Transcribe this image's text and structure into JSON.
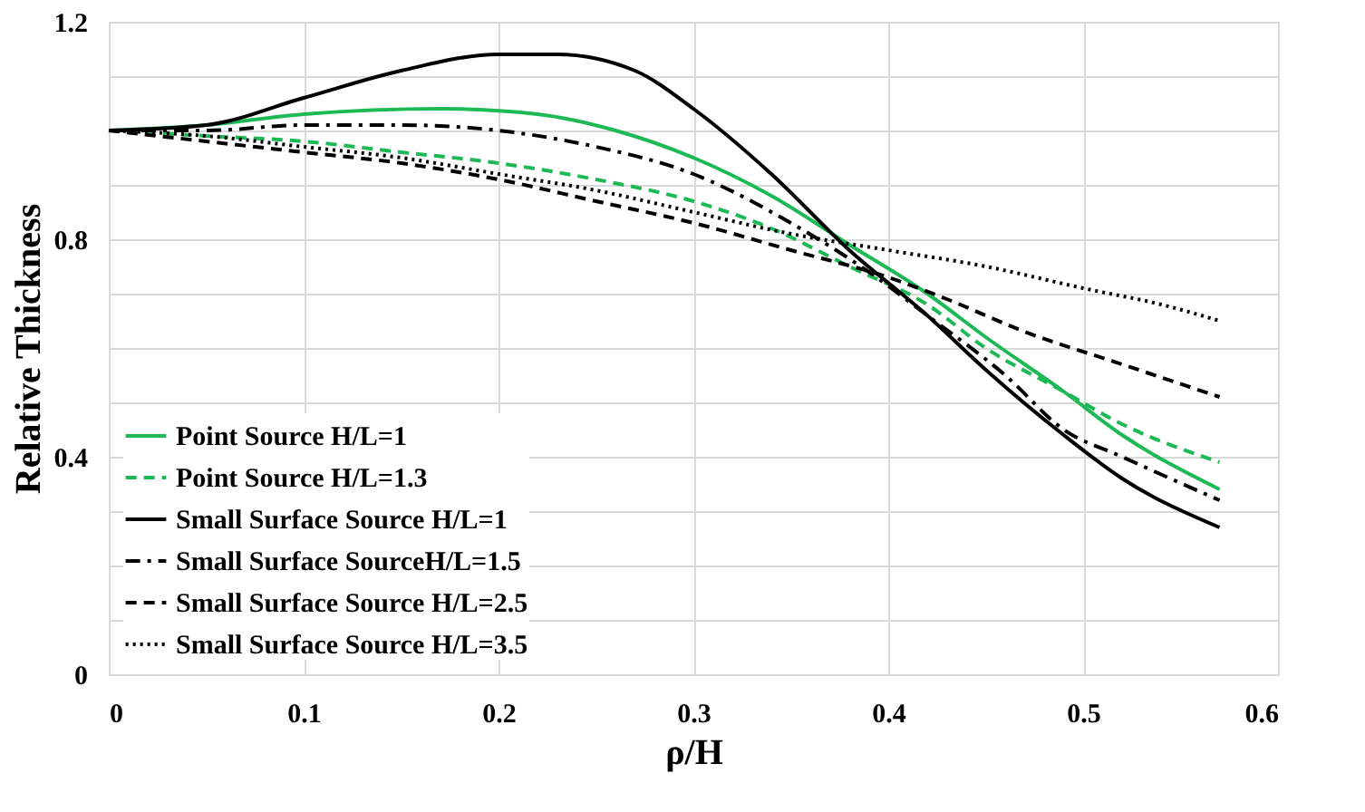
{
  "chart_data": {
    "type": "line",
    "xlabel": "ρ/H",
    "ylabel": "Relative Thickness",
    "xlim": [
      0,
      0.6
    ],
    "xticks": [
      0,
      0.1,
      0.2,
      0.3,
      0.4,
      0.5,
      0.6
    ],
    "ylim": [
      0,
      1.2
    ],
    "yticks": [
      0,
      {
        "value": 0.1,
        "label": null
      },
      {
        "value": 0.2,
        "label": null
      },
      {
        "value": 0.3,
        "label": null
      },
      0.4,
      {
        "value": 0.5,
        "label": null
      },
      {
        "value": 0.6,
        "label": null
      },
      {
        "value": 0.7,
        "label": null
      },
      0.8,
      {
        "value": 0.9,
        "label": null
      },
      {
        "value": 1.0,
        "label": null
      },
      {
        "value": 1.1,
        "label": null
      },
      1.2
    ],
    "grid": true,
    "legend": "bottom left",
    "marker": "none",
    "series": [
      {
        "name": "Point Source H/L=1",
        "color": "#1db954",
        "line_style": "solid",
        "x": [
          0,
          0.05,
          0.1,
          0.17,
          0.22,
          0.26,
          0.3,
          0.34,
          0.38,
          0.42,
          0.45,
          0.49,
          0.52,
          0.57
        ],
        "values": [
          1.0,
          1.01,
          1.03,
          1.04,
          1.03,
          1.0,
          0.95,
          0.88,
          0.79,
          0.7,
          0.62,
          0.52,
          0.44,
          0.34
        ]
      },
      {
        "name": "Point Source H/L=1.3",
        "color": "#1db954",
        "line_style": "dashed",
        "x": [
          0,
          0.05,
          0.1,
          0.15,
          0.2,
          0.25,
          0.3,
          0.34,
          0.38,
          0.42,
          0.45,
          0.49,
          0.52,
          0.57
        ],
        "values": [
          1.0,
          0.99,
          0.98,
          0.96,
          0.94,
          0.91,
          0.87,
          0.82,
          0.75,
          0.68,
          0.6,
          0.52,
          0.46,
          0.39
        ]
      },
      {
        "name": "Small Surface Source H/L=1",
        "color": "#000000",
        "line_style": "solid",
        "x": [
          0,
          0.05,
          0.1,
          0.15,
          0.2,
          0.23,
          0.27,
          0.3,
          0.34,
          0.38,
          0.42,
          0.45,
          0.49,
          0.52,
          0.57
        ],
        "values": [
          1.0,
          1.01,
          1.06,
          1.11,
          1.14,
          1.14,
          1.11,
          1.04,
          0.92,
          0.78,
          0.66,
          0.56,
          0.44,
          0.36,
          0.27
        ]
      },
      {
        "name": "Small Surface SourceH/L=1.5",
        "color": "#000000",
        "line_style": "dashdot",
        "x": [
          0,
          0.05,
          0.1,
          0.15,
          0.2,
          0.25,
          0.3,
          0.35,
          0.39,
          0.42,
          0.46,
          0.49,
          0.52,
          0.57
        ],
        "values": [
          1.0,
          1.0,
          1.01,
          1.01,
          1.0,
          0.97,
          0.92,
          0.83,
          0.74,
          0.66,
          0.55,
          0.45,
          0.4,
          0.32
        ]
      },
      {
        "name": "Small Surface Source H/L=2.5",
        "color": "#000000",
        "line_style": "dashed",
        "x": [
          0,
          0.05,
          0.1,
          0.15,
          0.2,
          0.25,
          0.3,
          0.35,
          0.4,
          0.43,
          0.47,
          0.52,
          0.57
        ],
        "values": [
          1.0,
          0.98,
          0.96,
          0.94,
          0.91,
          0.87,
          0.83,
          0.78,
          0.73,
          0.69,
          0.63,
          0.57,
          0.51
        ]
      },
      {
        "name": "Small Surface Source H/L=3.5",
        "color": "#000000",
        "line_style": "dotted",
        "x": [
          0,
          0.05,
          0.1,
          0.15,
          0.2,
          0.25,
          0.3,
          0.35,
          0.4,
          0.45,
          0.5,
          0.54,
          0.57
        ],
        "values": [
          1.0,
          0.99,
          0.97,
          0.95,
          0.92,
          0.89,
          0.85,
          0.81,
          0.78,
          0.75,
          0.71,
          0.68,
          0.65
        ]
      }
    ]
  }
}
